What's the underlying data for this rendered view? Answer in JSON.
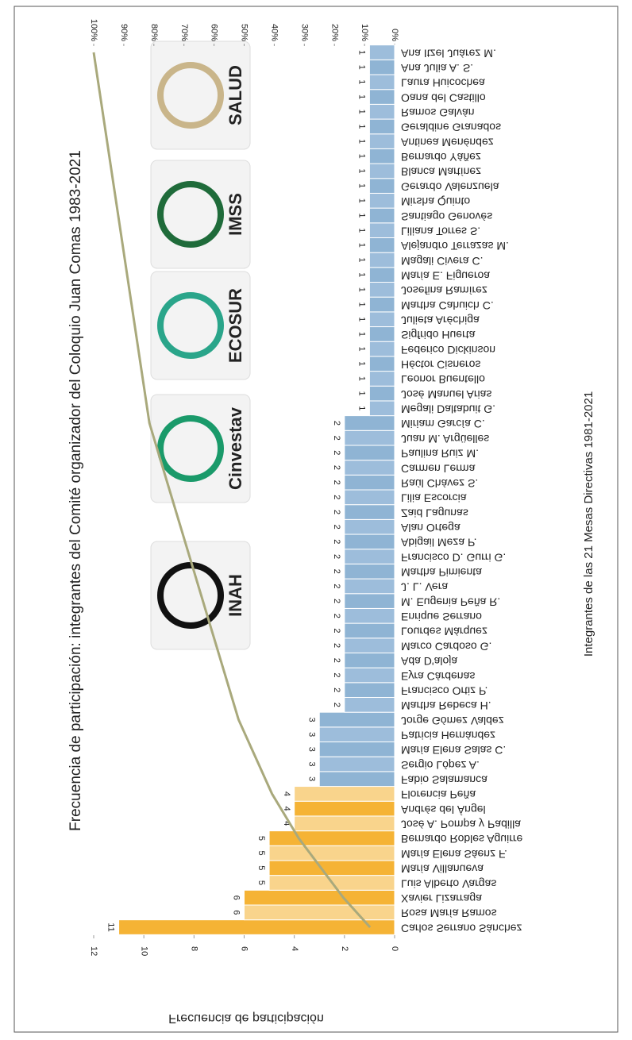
{
  "chart_data": {
    "type": "bar",
    "title": "Frecuencia de participación: integrantes del Comité organizador del Coloquio Juan Comas 1983-2021",
    "y_label": "Frecuencia de participación",
    "x_label": "Integrantes de las 21 Mesas Directivas 1981-2021",
    "logos": [
      "INAH",
      "Cinvestav",
      "ECOSUR",
      "IMSS",
      "SALUD"
    ],
    "categories": [
      "Carlos Serrano Sánchez",
      "Rosa María Ramos",
      "Xavier Lizarraga",
      "Luis Alberto Vargas",
      "María Villanueva",
      "María Elena Sáenz F.",
      "Bernardo Robles Aguirre",
      "José A. Pompa y Padilla",
      "Andrés del Ángel",
      "Florencia Peña",
      "Fabio Salamanca",
      "Sergio López A.",
      "María Elena Salas C.",
      "Patricia Hernández",
      "Jorge Gómez Valdez",
      "Martha Rebeca H.",
      "Francisco Ortiz P.",
      "Eyra Cárdenas",
      "Ada D'aloja",
      "Marco Cardoso G.",
      "Lourdes Márquez",
      "Enrique Serrano",
      "M. Eugenia Peña R.",
      "J. L. Vera",
      "Martha Pimienta",
      "Francisco D. Gurri G.",
      "Abigail Meza P.",
      "Alan Ortega",
      "Zaid Lagunas",
      "Lilia Escorcia",
      "Raúl Chávez S.",
      "Carmen Lerma",
      "Paulina Ruiz M.",
      "Juan M. Argüelles",
      "Miriam García C.",
      "Megali Daltabuit G.",
      "José Manuel Arias",
      "Leonor Buentello",
      "Héctor Cisneros",
      "Federico Dickinson",
      "Sigfrido Huerta",
      "Julieta Aréchiga",
      "Martha Cahuich C.",
      "Josefina Ramírez",
      "María E. Figueroa",
      "Magali Civera C.",
      "Alejandro Terrazas M.",
      "Liliana Torres S.",
      "Santiago Genovés",
      "Mirsha Quinto",
      "Gerardo Valenzuela",
      "Blanca Martínez",
      "Bernardo Yáñez",
      "Antinea Menéndez",
      "Geraldine Granados",
      "Ramos Galván",
      "Oana del Castillo",
      "Laura Huicochea",
      "Ana Julia A. S.",
      "Ana Itzel Juárez M."
    ],
    "values": [
      11,
      6,
      6,
      5,
      5,
      5,
      5,
      4,
      4,
      4,
      3,
      3,
      3,
      3,
      3,
      2,
      2,
      2,
      2,
      2,
      2,
      2,
      2,
      2,
      2,
      2,
      2,
      2,
      2,
      2,
      2,
      2,
      2,
      2,
      2,
      1,
      1,
      1,
      1,
      1,
      1,
      1,
      1,
      1,
      1,
      1,
      1,
      1,
      1,
      1,
      1,
      1,
      1,
      1,
      1,
      1,
      1,
      1,
      1,
      1
    ],
    "colors": [
      "#f5b335",
      "#f9d48c",
      "#8fb4d4",
      "#9dbddb"
    ],
    "highlight_count": 10,
    "line_color": "#a9a97c",
    "ylim": [
      0,
      12
    ],
    "yticks": [
      0,
      2,
      4,
      6,
      8,
      10,
      12
    ],
    "y2lim": [
      0,
      100
    ],
    "y2ticks": [
      {
        "value": 0,
        "label": "0%"
      },
      {
        "value": 10,
        "label": "10%"
      },
      {
        "value": 20,
        "label": "20%"
      },
      {
        "value": 30,
        "label": "30%"
      },
      {
        "value": 40,
        "label": "40%"
      },
      {
        "value": 50,
        "label": "50%"
      },
      {
        "value": 60,
        "label": "60%"
      },
      {
        "value": 70,
        "label": "70%"
      },
      {
        "value": 80,
        "label": "80%"
      },
      {
        "value": 90,
        "label": "90%"
      },
      {
        "value": 100,
        "label": "100%"
      }
    ]
  }
}
